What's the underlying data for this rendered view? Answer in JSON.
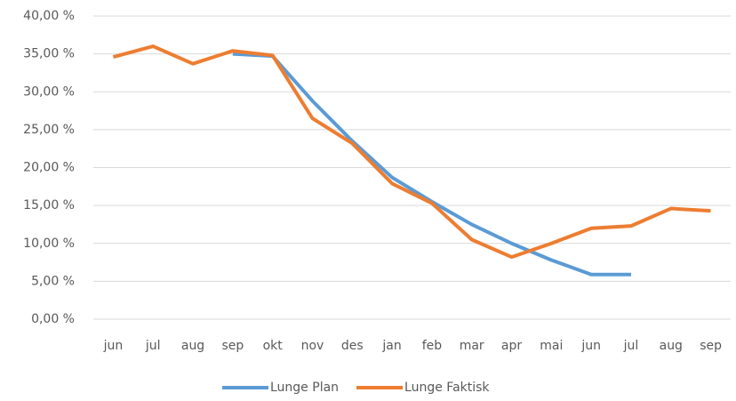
{
  "chart_data": {
    "type": "line",
    "categories": [
      "jun",
      "jul",
      "aug",
      "sep",
      "okt",
      "nov",
      "des",
      "jan",
      "feb",
      "mar",
      "apr",
      "mai",
      "jun",
      "jul",
      "aug",
      "sep"
    ],
    "series": [
      {
        "name": "Lunge Plan",
        "color": "#5b9bd5",
        "values": [
          null,
          null,
          null,
          35.0,
          34.7,
          28.8,
          23.5,
          18.7,
          15.5,
          12.5,
          10.0,
          7.8,
          5.9,
          5.9,
          null,
          null
        ]
      },
      {
        "name": "Lunge Faktisk",
        "color": "#ed7d31",
        "values": [
          34.6,
          36.0,
          33.7,
          35.4,
          34.8,
          26.5,
          23.2,
          17.9,
          15.3,
          10.5,
          8.2,
          10.0,
          12.0,
          12.3,
          14.6,
          14.3
        ]
      }
    ],
    "ylim": [
      0,
      40
    ],
    "yticks": [
      {
        "value": 0,
        "label": "0,00 %"
      },
      {
        "value": 5,
        "label": "5,00 %"
      },
      {
        "value": 10,
        "label": "10,00 %"
      },
      {
        "value": 15,
        "label": "15,00 %"
      },
      {
        "value": 20,
        "label": "20,00 %"
      },
      {
        "value": 25,
        "label": "25,00 %"
      },
      {
        "value": 30,
        "label": "30,00 %"
      },
      {
        "value": 35,
        "label": "35,00 %"
      },
      {
        "value": 40,
        "label": "40,00 %"
      }
    ],
    "grid": true,
    "legend": "bottom"
  }
}
